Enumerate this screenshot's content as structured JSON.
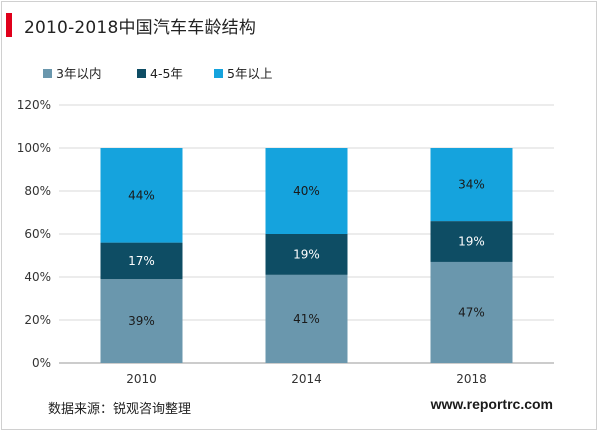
{
  "header": {
    "title": "2010-2018中国汽车车龄结构",
    "accent_color": "#e0001b"
  },
  "footer": {
    "source": "数据来源：锐观咨询整理",
    "url": "www.reportrc.com"
  },
  "chart_data": {
    "type": "bar",
    "stacked": true,
    "categories": [
      "2010",
      "2014",
      "2018"
    ],
    "series": [
      {
        "name": "3年以内",
        "values": [
          39,
          41,
          47
        ],
        "labels": [
          "39%",
          "41%",
          "47%"
        ],
        "color": "#6a97ad"
      },
      {
        "name": "4-5年",
        "values": [
          17,
          19,
          19
        ],
        "labels": [
          "17%",
          "19%",
          "19%"
        ],
        "color": "#0e4d64"
      },
      {
        "name": "5年以上",
        "values": [
          44,
          40,
          34
        ],
        "labels": [
          "44%",
          "40%",
          "34%"
        ],
        "color": "#15a3dd"
      }
    ],
    "ylim": [
      0,
      120
    ],
    "yticks": [
      0,
      20,
      40,
      60,
      80,
      100,
      120
    ],
    "ytick_labels": [
      "0%",
      "20%",
      "40%",
      "60%",
      "80%",
      "100%",
      "120%"
    ],
    "grid": true,
    "legend_position": "top-left"
  }
}
